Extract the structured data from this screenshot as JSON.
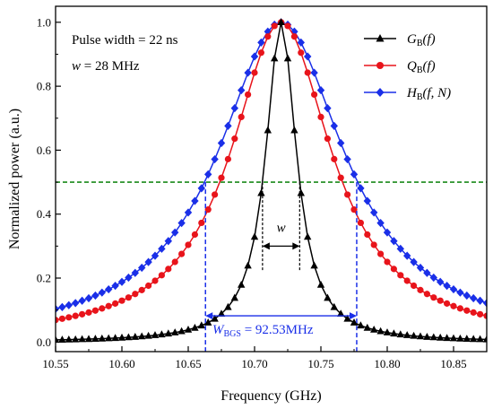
{
  "chart_data": {
    "type": "line",
    "xlabel": "Frequency (GHz)",
    "ylabel": "Normalized power (a.u.)",
    "xlim": [
      10.55,
      10.875
    ],
    "ylim": [
      -0.03,
      1.05
    ],
    "xticks": [
      10.55,
      10.6,
      10.65,
      10.7,
      10.75,
      10.8,
      10.85
    ],
    "xtick_labels": [
      "10.55",
      "10.60",
      "10.65",
      "10.70",
      "10.75",
      "10.80",
      "10.85"
    ],
    "yticks": [
      0.0,
      0.2,
      0.4,
      0.6,
      0.8,
      1.0
    ],
    "ytick_labels": [
      "0.0",
      "0.2",
      "0.4",
      "0.6",
      "0.8",
      "1.0"
    ],
    "grid": false,
    "legend_position": "top-right",
    "center_frequency": 10.72,
    "point_step": 0.005,
    "series": [
      {
        "key": "G",
        "name_main": "G",
        "name_sub": "B",
        "name_args": "(f)",
        "color": "#000000",
        "marker": "triangle",
        "fwhm_ghz": 0.028
      },
      {
        "key": "Q",
        "name_main": "Q",
        "name_sub": "B",
        "name_args": "(f)",
        "color": "#e8141b",
        "marker": "circle",
        "fwhm_ghz": 0.0925
      },
      {
        "key": "H",
        "name_main": "H",
        "name_sub": "B",
        "name_args": "(f, N)",
        "color": "#1a2fe8",
        "marker": "diamond",
        "fwhm_ghz": 0.1155
      }
    ],
    "reference_line": {
      "y": 0.5,
      "color": "#1a8a1a",
      "style": "dashed"
    },
    "markers": {
      "left_x": 10.663,
      "right_x": 10.777,
      "color": "#1a2fe8",
      "w_left_x": 10.706,
      "w_right_x": 10.734
    },
    "annotations": {
      "line1": "Pulse width = 22 ns",
      "line2_var": "w",
      "line2_rest": " = 28 MHz",
      "w_label": "w",
      "wbgs_main": "W",
      "wbgs_sub": "BGS",
      "wbgs_rest": "= 92.53MHz"
    }
  }
}
